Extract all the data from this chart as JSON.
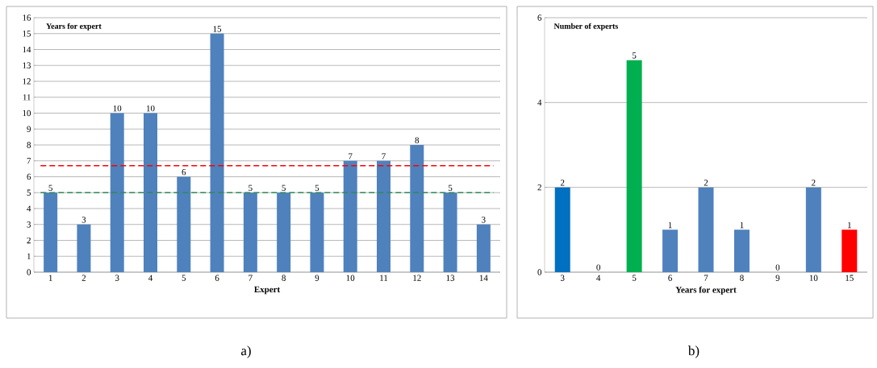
{
  "chart_data": [
    {
      "type": "bar",
      "ylabel": "Years for expert",
      "xlabel": "Expert",
      "categories": [
        "1",
        "2",
        "3",
        "4",
        "5",
        "6",
        "7",
        "8",
        "9",
        "10",
        "11",
        "12",
        "13",
        "14"
      ],
      "values": [
        5,
        3,
        10,
        10,
        6,
        15,
        5,
        5,
        5,
        7,
        7,
        8,
        5,
        3
      ],
      "color": "#4f81bd",
      "ylim": [
        0,
        16
      ],
      "yticks": [
        0,
        1,
        2,
        3,
        4,
        5,
        6,
        7,
        8,
        9,
        10,
        11,
        12,
        13,
        14,
        15,
        16
      ],
      "grid": "y",
      "data_labels": true,
      "ref_lines": [
        {
          "axis": "y",
          "value": 6.7,
          "color": "#ff0000",
          "line_style": "dashed"
        },
        {
          "axis": "y",
          "value": 5,
          "color": "#2e8b57",
          "line_style": "dashed"
        }
      ],
      "annotations": [
        "a)"
      ]
    },
    {
      "type": "bar",
      "ylabel": "Number of experts",
      "xlabel": "Years for expert",
      "categories": [
        "3",
        "4",
        "5",
        "6",
        "7",
        "8",
        "9",
        "10",
        "15"
      ],
      "values": [
        2,
        0,
        5,
        1,
        2,
        1,
        0,
        2,
        1
      ],
      "colors": [
        "#0070c0",
        "#4f81bd",
        "#00b050",
        "#4f81bd",
        "#4f81bd",
        "#4f81bd",
        "#4f81bd",
        "#4f81bd",
        "#ff0000"
      ],
      "ylim": [
        0,
        6
      ],
      "yticks": [
        0,
        2,
        4,
        6
      ],
      "grid": "y",
      "data_labels": true,
      "annotations": [
        "b)"
      ]
    }
  ]
}
